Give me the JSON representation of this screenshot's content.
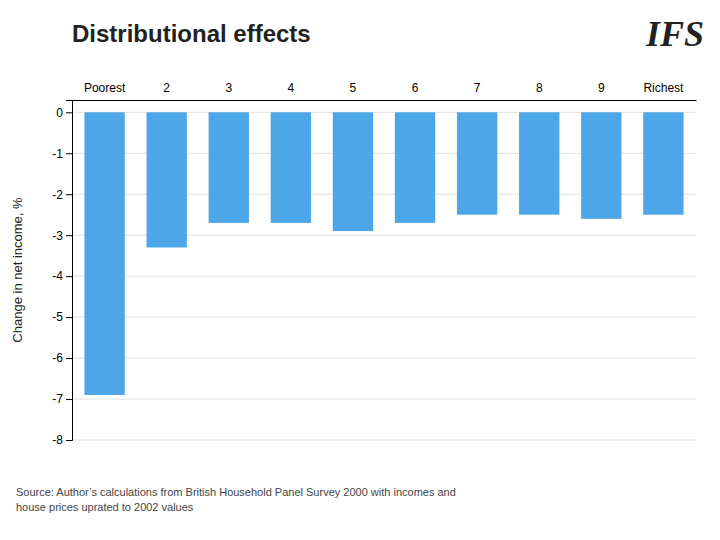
{
  "chart_data": {
    "type": "bar",
    "title": "Distributional effects",
    "ylabel": "Change in net income, %",
    "annotations": [
      "IFS",
      "Source: Author’s calculations from British Household Panel Survey 2000 with incomes and\nhouse prices uprated to 2002 values"
    ],
    "categories": [
      "Poorest",
      "2",
      "3",
      "4",
      "5",
      "6",
      "7",
      "8",
      "9",
      "Richest"
    ],
    "values": [
      -6.9,
      -3.3,
      -2.7,
      -2.7,
      -2.9,
      -2.7,
      -2.5,
      -2.5,
      -2.6,
      -2.5
    ],
    "color": "#4da6e8",
    "ylim": [
      -8.0,
      0.3
    ],
    "yticks": [
      0,
      -1,
      -2,
      -3,
      -4,
      -5,
      -6,
      -7,
      -8
    ],
    "grid": true
  }
}
